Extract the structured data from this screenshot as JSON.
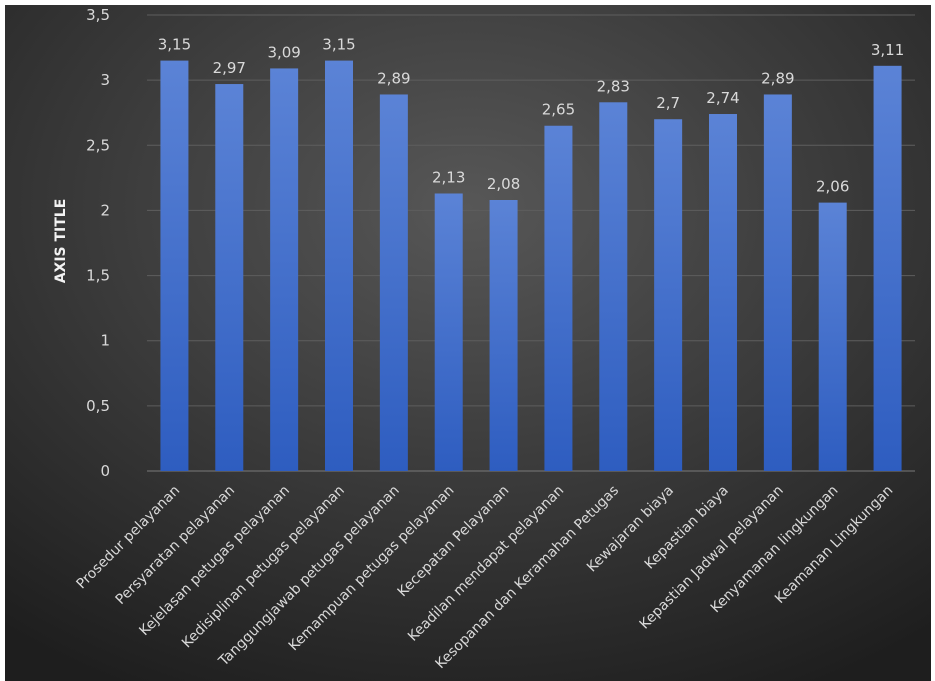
{
  "chart_data": {
    "type": "bar",
    "ylabel": "AXIS TITLE",
    "ylim": [
      0,
      3.5
    ],
    "yticks": [
      "0",
      "0,5",
      "1",
      "1,5",
      "2",
      "2,5",
      "3",
      "3,5"
    ],
    "ytick_values": [
      0,
      0.5,
      1,
      1.5,
      2,
      2.5,
      3,
      3.5
    ],
    "categories": [
      "Prosedur pelayanan",
      "Persyaratan pelayanan",
      "Kejelasan petugas pelayanan",
      "Kedisiplinan petugas pelayanan",
      "Tanggungjawab petugas pelayanan",
      "Kemampuan petugas pelayanan",
      "Kecepatan Pelayanan",
      "Keadilan mendapat pelayanan",
      "Kesopanan dan Keramahan Petugas",
      "Kewajaran biaya",
      "Kepastian biaya",
      "Kepastian Jadwal pelayanan",
      "Kenyamanan lingkungan",
      "Keamanan Lingkungan"
    ],
    "values": [
      3.15,
      2.97,
      3.09,
      3.15,
      2.89,
      2.13,
      2.08,
      2.65,
      2.83,
      2.7,
      2.74,
      2.89,
      2.06,
      3.11
    ],
    "value_labels": [
      "3,15",
      "2,97",
      "3,09",
      "3,15",
      "2,89",
      "2,13",
      "2,08",
      "2,65",
      "2,83",
      "2,7",
      "2,74",
      "2,89",
      "2,06",
      "3,11"
    ],
    "grid": true,
    "colors": {
      "bar_top": "#5b83d6",
      "bar_bottom": "#2e5dc0",
      "bg_light": "#575757",
      "bg_dark": "#1e1e1e",
      "grid": "#5e5e5e",
      "text": "#d9d9d9"
    }
  }
}
